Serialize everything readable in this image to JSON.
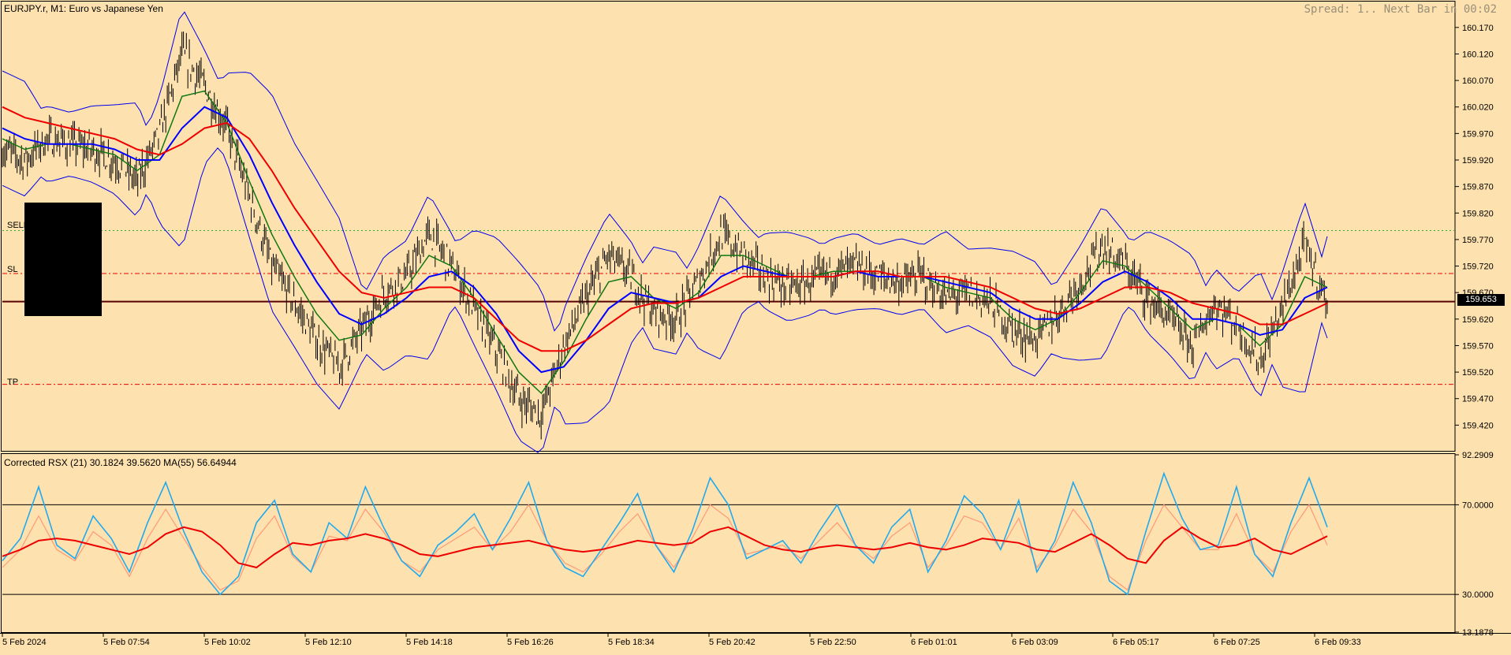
{
  "header": {
    "symbol_title": "EURJPY.r, M1:  Euro vs Japanese Yen",
    "spread_info": "Spread: 1.. Next Bar in 00:02"
  },
  "trade_levels": {
    "sell_label": "SELL",
    "sl_label": "SL",
    "tp_label": "TP",
    "sell_price": 159.787,
    "sl_price": 159.706,
    "tp_price": 159.497
  },
  "current_price_label": "159.653",
  "indicator": {
    "title": "Corrected RSX (21) 30.1824 39.5620 MA(55) 56.64944"
  },
  "colors": {
    "background": "#fde1ae",
    "price_bars": "#000000",
    "bollinger": "#0000ee",
    "ma_fast": "#117711",
    "ma_mid": "#0000ff",
    "ma_slow": "#ee0000",
    "sl_tp_lines": "#ee0000",
    "sell_line": "#33aa33",
    "rsx_main": "#22aaee",
    "rsx_signal": "#ff9977",
    "rsx_ma": "#ee0000"
  },
  "chart_data": [
    {
      "type": "line",
      "title": "EURJPY.r, M1:  Euro vs Japanese Yen",
      "ylim": [
        159.37,
        160.195
      ],
      "y_ticks": [
        "160.170",
        "160.120",
        "160.070",
        "160.020",
        "159.970",
        "159.920",
        "159.870",
        "159.820",
        "159.770",
        "159.720",
        "159.670",
        "159.620",
        "159.570",
        "159.520",
        "159.470",
        "159.420"
      ],
      "x_ticks": [
        "5 Feb 2024",
        "5 Feb 07:54",
        "5 Feb 10:02",
        "5 Feb 12:10",
        "5 Feb 14:18",
        "5 Feb 16:26",
        "5 Feb 18:34",
        "5 Feb 20:42",
        "5 Feb 22:50",
        "6 Feb 01:01",
        "6 Feb 03:09",
        "6 Feb 05:17",
        "6 Feb 07:25",
        "6 Feb 09:33"
      ],
      "current_price": 159.653,
      "series": [
        {
          "role": "price",
          "points": [
            159.94,
            159.92,
            159.96,
            159.95,
            159.94,
            159.92,
            159.88,
            159.97,
            160.12,
            160.06,
            159.98,
            159.85,
            159.72,
            159.65,
            159.58,
            159.53,
            159.6,
            159.67,
            159.7,
            159.78,
            159.72,
            159.64,
            159.56,
            159.47,
            159.44,
            159.57,
            159.66,
            159.74,
            159.7,
            159.63,
            159.62,
            159.69,
            159.78,
            159.74,
            159.7,
            159.68,
            159.69,
            159.71,
            159.72,
            159.7,
            159.69,
            159.7,
            159.66,
            159.67,
            159.65,
            159.6,
            159.58,
            159.63,
            159.69,
            159.76,
            159.72,
            159.66,
            159.62,
            159.57,
            159.65,
            159.61,
            159.54,
            159.64,
            159.76,
            159.65
          ]
        },
        {
          "role": "ma_fast",
          "points": [
            159.96,
            159.94,
            159.95,
            159.95,
            159.94,
            159.93,
            159.9,
            159.93,
            160.04,
            160.05,
            159.99,
            159.88,
            159.78,
            159.7,
            159.63,
            159.58,
            159.59,
            159.64,
            159.68,
            159.74,
            159.72,
            159.66,
            159.59,
            159.52,
            159.48,
            159.54,
            159.62,
            159.69,
            159.7,
            159.66,
            159.64,
            159.67,
            159.74,
            159.74,
            159.72,
            159.7,
            159.7,
            159.71,
            159.71,
            159.7,
            159.7,
            159.7,
            159.68,
            159.67,
            159.66,
            159.62,
            159.6,
            159.62,
            159.67,
            159.73,
            159.72,
            159.68,
            159.64,
            159.6,
            159.62,
            159.61,
            159.57,
            159.61,
            159.7,
            159.68
          ]
        },
        {
          "role": "ma_mid",
          "points": [
            159.98,
            159.96,
            159.95,
            159.95,
            159.95,
            159.94,
            159.92,
            159.92,
            159.98,
            160.02,
            160.0,
            159.93,
            159.84,
            159.76,
            159.69,
            159.63,
            159.61,
            159.63,
            159.66,
            159.7,
            159.71,
            159.68,
            159.63,
            159.56,
            159.52,
            159.53,
            159.58,
            159.64,
            159.67,
            159.66,
            159.65,
            159.66,
            159.7,
            159.72,
            159.71,
            159.7,
            159.7,
            159.7,
            159.71,
            159.7,
            159.7,
            159.7,
            159.69,
            159.68,
            159.67,
            159.64,
            159.62,
            159.62,
            159.65,
            159.69,
            159.71,
            159.69,
            159.66,
            159.62,
            159.62,
            159.61,
            159.59,
            159.6,
            159.66,
            159.68
          ]
        },
        {
          "role": "ma_slow",
          "points": [
            160.02,
            160.0,
            159.99,
            159.98,
            159.97,
            159.96,
            159.94,
            159.93,
            159.95,
            159.98,
            159.99,
            159.96,
            159.9,
            159.83,
            159.77,
            159.71,
            159.67,
            159.66,
            159.67,
            159.68,
            159.68,
            159.66,
            159.62,
            159.58,
            159.56,
            159.56,
            159.58,
            159.61,
            159.64,
            159.65,
            159.65,
            159.66,
            159.68,
            159.7,
            159.7,
            159.7,
            159.7,
            159.7,
            159.71,
            159.71,
            159.7,
            159.7,
            159.7,
            159.69,
            159.68,
            159.66,
            159.64,
            159.63,
            159.64,
            159.66,
            159.68,
            159.68,
            159.67,
            159.65,
            159.64,
            159.63,
            159.61,
            159.61,
            159.63,
            159.65
          ]
        }
      ]
    },
    {
      "type": "line",
      "title": "Corrected RSX (21) 30.1824 39.5620 MA(55) 56.64944",
      "ylim": [
        13.1878,
        92.2909
      ],
      "y_ticks": [
        "92.2909",
        "70.0000",
        "30.0000",
        "13.1878"
      ],
      "levels": [
        70,
        30
      ],
      "series": [
        {
          "role": "rsx_main",
          "points": [
            45,
            55,
            78,
            52,
            46,
            65,
            55,
            40,
            62,
            80,
            58,
            40,
            30,
            38,
            62,
            72,
            48,
            40,
            62,
            55,
            78,
            60,
            45,
            38,
            52,
            58,
            66,
            50,
            64,
            80,
            54,
            42,
            38,
            50,
            62,
            75,
            52,
            40,
            58,
            82,
            70,
            46,
            50,
            54,
            44,
            58,
            70,
            52,
            44,
            60,
            68,
            40,
            54,
            74,
            66,
            50,
            72,
            40,
            54,
            80,
            62,
            36,
            30,
            58,
            84,
            64,
            50,
            52,
            78,
            48,
            38,
            62,
            82,
            60
          ]
        },
        {
          "role": "rsx_signal",
          "points": [
            42,
            50,
            65,
            50,
            45,
            58,
            52,
            38,
            55,
            68,
            55,
            42,
            32,
            36,
            55,
            65,
            47,
            40,
            56,
            54,
            68,
            58,
            45,
            40,
            50,
            55,
            60,
            50,
            58,
            70,
            54,
            44,
            40,
            48,
            58,
            66,
            52,
            42,
            55,
            70,
            64,
            48,
            50,
            52,
            46,
            54,
            62,
            52,
            46,
            56,
            62,
            42,
            52,
            65,
            62,
            50,
            64,
            42,
            52,
            68,
            58,
            38,
            32,
            54,
            70,
            60,
            50,
            50,
            66,
            48,
            40,
            58,
            70,
            52
          ]
        },
        {
          "role": "rsx_ma",
          "points": [
            47,
            50,
            54,
            55,
            54,
            52,
            50,
            48,
            51,
            57,
            60,
            58,
            52,
            44,
            42,
            48,
            53,
            52,
            54,
            55,
            57,
            55,
            52,
            48,
            47,
            49,
            51,
            52,
            53,
            54,
            52,
            50,
            49,
            50,
            52,
            54,
            53,
            52,
            53,
            58,
            60,
            56,
            52,
            50,
            49,
            51,
            52,
            51,
            50,
            51,
            53,
            51,
            50,
            52,
            55,
            54,
            53,
            50,
            49,
            53,
            57,
            52,
            46,
            44,
            54,
            60,
            55,
            51,
            52,
            55,
            50,
            48,
            52,
            56
          ]
        }
      ]
    }
  ]
}
